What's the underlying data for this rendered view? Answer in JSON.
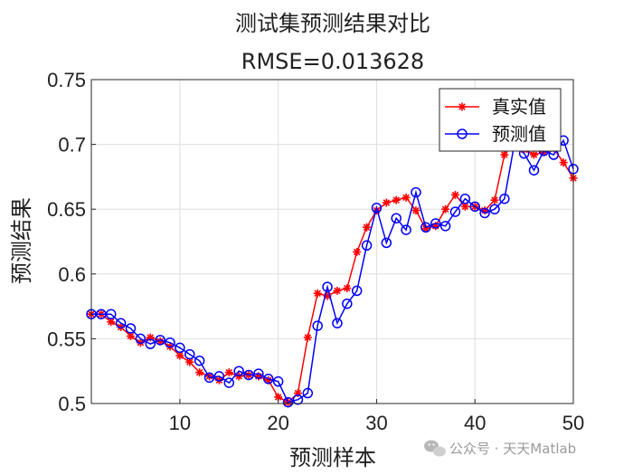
{
  "chart_data": {
    "type": "line",
    "title": "测试集预测结果对比",
    "subtitle": "RMSE=0.013628",
    "xlabel": "预测样本",
    "ylabel": "预测结果",
    "xlim": [
      1,
      50
    ],
    "ylim": [
      0.5,
      0.75
    ],
    "xticks": [
      10,
      20,
      30,
      40,
      50
    ],
    "yticks": [
      0.5,
      0.55,
      0.6,
      0.65,
      0.7,
      0.75
    ],
    "ytick_labels": [
      "0.5",
      "0.55",
      "0.6",
      "0.65",
      "0.7",
      "0.75"
    ],
    "grid": true,
    "legend_position": "top-right",
    "x": [
      1,
      2,
      3,
      4,
      5,
      6,
      7,
      8,
      9,
      10,
      11,
      12,
      13,
      14,
      15,
      16,
      17,
      18,
      19,
      20,
      21,
      22,
      23,
      24,
      25,
      26,
      27,
      28,
      29,
      30,
      31,
      32,
      33,
      34,
      35,
      36,
      37,
      38,
      39,
      40,
      41,
      42,
      43,
      44,
      45,
      46,
      47,
      48,
      49,
      50
    ],
    "series": [
      {
        "name": "真实值",
        "color": "#ff0000",
        "marker": "asterisk",
        "values": [
          0.569,
          0.569,
          0.563,
          0.559,
          0.552,
          0.547,
          0.551,
          0.548,
          0.544,
          0.537,
          0.532,
          0.524,
          0.521,
          0.518,
          0.524,
          0.521,
          0.522,
          0.521,
          0.518,
          0.505,
          0.501,
          0.508,
          0.551,
          0.585,
          0.583,
          0.587,
          0.589,
          0.617,
          0.636,
          0.649,
          0.655,
          0.657,
          0.659,
          0.649,
          0.635,
          0.637,
          0.65,
          0.661,
          0.652,
          0.652,
          0.649,
          0.657,
          0.692,
          0.703,
          0.696,
          0.692,
          0.694,
          0.697,
          0.686,
          0.674
        ]
      },
      {
        "name": "预测值",
        "color": "#0000ff",
        "marker": "circle",
        "values": [
          0.569,
          0.569,
          0.569,
          0.562,
          0.558,
          0.55,
          0.546,
          0.549,
          0.547,
          0.543,
          0.538,
          0.533,
          0.52,
          0.521,
          0.516,
          0.525,
          0.522,
          0.523,
          0.519,
          0.517,
          0.501,
          0.503,
          0.508,
          0.56,
          0.59,
          0.562,
          0.577,
          0.587,
          0.622,
          0.651,
          0.624,
          0.643,
          0.634,
          0.663,
          0.636,
          0.639,
          0.637,
          0.648,
          0.658,
          0.652,
          0.647,
          0.65,
          0.658,
          0.7,
          0.693,
          0.68,
          0.695,
          0.692,
          0.703,
          0.681
        ]
      }
    ]
  },
  "watermark": {
    "icon": "wechat-icon",
    "text": "公众号 · 天天Matlab"
  }
}
